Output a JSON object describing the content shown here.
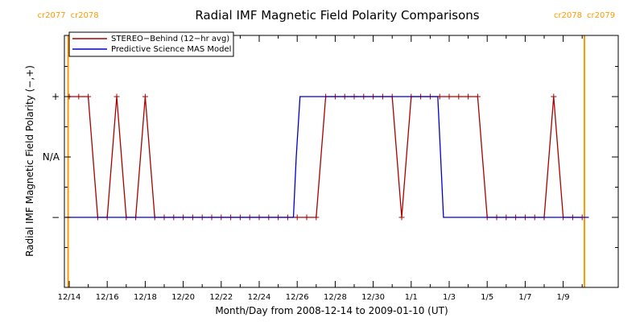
{
  "chart_data": {
    "type": "line",
    "title": "Radial IMF Magnetic Field Polarity Comparisons",
    "xlabel": "Month/Day from 2008-12-14 to 2009-01-10 (UT)",
    "ylabel": "Radial IMF Magnetic Field Polarity (−,+)",
    "x_ticks": [
      {
        "day": 0,
        "label": "12/14"
      },
      {
        "day": 2,
        "label": "12/16"
      },
      {
        "day": 4,
        "label": "12/18"
      },
      {
        "day": 6,
        "label": "12/20"
      },
      {
        "day": 8,
        "label": "12/22"
      },
      {
        "day": 10,
        "label": "12/24"
      },
      {
        "day": 12,
        "label": "12/26"
      },
      {
        "day": 14,
        "label": "12/28"
      },
      {
        "day": 16,
        "label": "12/30"
      },
      {
        "day": 18,
        "label": "1/1"
      },
      {
        "day": 20,
        "label": "1/3"
      },
      {
        "day": 22,
        "label": "1/5"
      },
      {
        "day": 24,
        "label": "1/7"
      },
      {
        "day": 26,
        "label": "1/9"
      }
    ],
    "y_ticks": [
      {
        "value": 1,
        "label": "+"
      },
      {
        "value": 0,
        "label": "N/A"
      },
      {
        "value": -1,
        "label": "−"
      }
    ],
    "xlim": [
      -0.5,
      28
    ],
    "ylim": [
      -2,
      2
    ],
    "grid": false,
    "legend_position": "top-left",
    "series": [
      {
        "name": "STEREO−Behind (12−hr avg)",
        "color": "#aa0000",
        "markers": true,
        "x": [
          0.0,
          0.5,
          1.0,
          1.5,
          2.0,
          2.5,
          3.0,
          3.5,
          4.0,
          4.5,
          5.0,
          5.5,
          6.0,
          6.5,
          7.0,
          7.5,
          8.0,
          8.5,
          9.0,
          9.5,
          10.0,
          10.5,
          11.0,
          11.5,
          12.0,
          12.5,
          13.0,
          13.5,
          14.0,
          14.5,
          15.0,
          15.5,
          16.0,
          16.5,
          17.0,
          17.5,
          18.0,
          18.5,
          19.0,
          19.5,
          20.0,
          20.5,
          21.0,
          21.5,
          22.0,
          22.5,
          23.0,
          23.5,
          24.0,
          24.5,
          25.0,
          25.5,
          26.0,
          26.5,
          27.0
        ],
        "y": [
          1,
          1,
          1,
          -1,
          -1,
          1,
          -1,
          -1,
          1,
          -1,
          -1,
          -1,
          -1,
          -1,
          -1,
          -1,
          -1,
          -1,
          -1,
          -1,
          -1,
          -1,
          -1,
          -1,
          -1,
          -1,
          -1,
          1,
          1,
          1,
          1,
          1,
          1,
          1,
          1,
          -1,
          1,
          1,
          1,
          1,
          1,
          1,
          1,
          1,
          -1,
          -1,
          -1,
          -1,
          -1,
          -1,
          -1,
          1,
          -1,
          -1,
          -1
        ]
      },
      {
        "name": "Predictive Science MAS Model",
        "color": "#0000cc",
        "markers": false,
        "x": [
          -0.2,
          11.8,
          11.95,
          12.15,
          14.0,
          19.4,
          19.55,
          19.7,
          25.0,
          27.35
        ],
        "y": [
          -1,
          -1,
          0,
          1,
          1,
          1,
          0,
          -1,
          -1,
          -1
        ]
      }
    ],
    "carrington_markers": [
      {
        "day": -0.06,
        "label_left": "cr2077",
        "label_right": "cr2078"
      },
      {
        "day": 27.12,
        "label_left": "cr2078",
        "label_right": "cr2079"
      }
    ],
    "marker_color": "#ff9900"
  }
}
